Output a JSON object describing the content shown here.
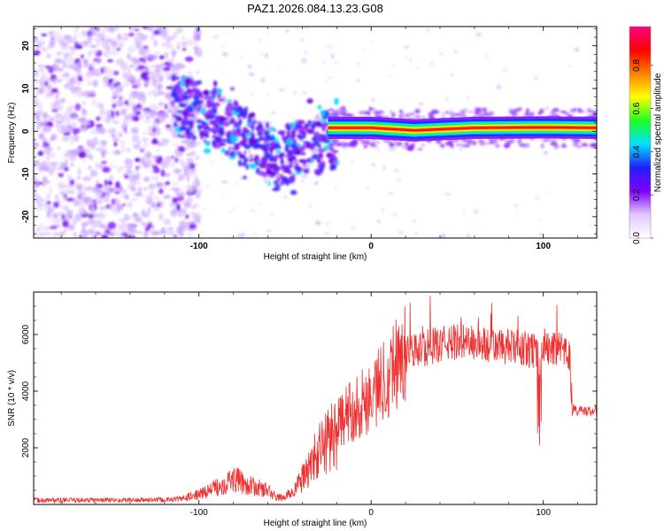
{
  "title": "PAZ1.2026.084.13.23.G08",
  "chart_data": [
    {
      "type": "heatmap",
      "xlabel": "Height of straight line (km)",
      "ylabel": "Frequency (Hz)",
      "xlim": [
        -196,
        131
      ],
      "ylim": [
        -25,
        24.5
      ],
      "xticks": [
        -100,
        0,
        100
      ],
      "xtick_labels": [
        "-100",
        "0",
        "100"
      ],
      "yticks": [
        -20,
        -10,
        0,
        10,
        20
      ],
      "ytick_labels": [
        "-20",
        "-10",
        "0",
        "10",
        "20"
      ],
      "colorbar": {
        "label": "Normalized spectral amplitude",
        "range": [
          0,
          0.98
        ],
        "ticks": [
          0,
          0.2,
          0.4,
          0.6,
          0.8
        ],
        "tick_labels": [
          "0.0",
          "0.2",
          "0.4",
          "0.6",
          "0.8"
        ],
        "colors": [
          "#ffffff",
          "#e0c8ff",
          "#8000ff",
          "#2020ff",
          "#00e0ff",
          "#20ff20",
          "#ffff00",
          "#ff8000",
          "#ff0000",
          "#ff0080"
        ]
      },
      "description_points": {
        "diffuse_region_x": [
          -196,
          -110
        ],
        "descending_trace": [
          [
            -110,
            6
          ],
          [
            -90,
            3
          ],
          [
            -70,
            -2
          ],
          [
            -55,
            -7
          ],
          [
            -40,
            -4
          ],
          [
            -25,
            -2
          ]
        ],
        "constant_trace": [
          [
            -15,
            0.8
          ],
          [
            0,
            0.8
          ],
          [
            25,
            0.2
          ],
          [
            60,
            0.8
          ],
          [
            100,
            0.9
          ],
          [
            131,
            0.8
          ]
        ]
      }
    },
    {
      "type": "line",
      "xlabel": "Height of straight line (km)",
      "ylabel": "SNR (10 * v/v)",
      "xlim": [
        -196,
        131
      ],
      "ylim": [
        0,
        7500
      ],
      "xticks": [
        -100,
        0,
        100
      ],
      "xtick_labels": [
        "-100",
        "0",
        "100"
      ],
      "yticks": [
        2000,
        4000,
        6000
      ],
      "ytick_labels": [
        "2000",
        "4000",
        "6000"
      ],
      "color": "#ee3030",
      "envelope": {
        "x": [
          -196,
          -150,
          -120,
          -110,
          -100,
          -90,
          -80,
          -70,
          -60,
          -55,
          -50,
          -45,
          -40,
          -35,
          -30,
          -25,
          -20,
          -15,
          -10,
          -5,
          0,
          5,
          10,
          15,
          20,
          30,
          40,
          50,
          60,
          70,
          80,
          90,
          95,
          98,
          100,
          105,
          110,
          115,
          117,
          120,
          131
        ],
        "y": [
          150,
          150,
          160,
          200,
          350,
          600,
          900,
          650,
          500,
          250,
          250,
          500,
          900,
          1400,
          1900,
          2300,
          2700,
          3100,
          3400,
          3600,
          3900,
          4200,
          4700,
          5100,
          5300,
          5500,
          5650,
          5750,
          5700,
          5600,
          5550,
          5500,
          5450,
          4800,
          5600,
          5500,
          5400,
          5300,
          3400,
          3300,
          3300
        ]
      }
    }
  ]
}
